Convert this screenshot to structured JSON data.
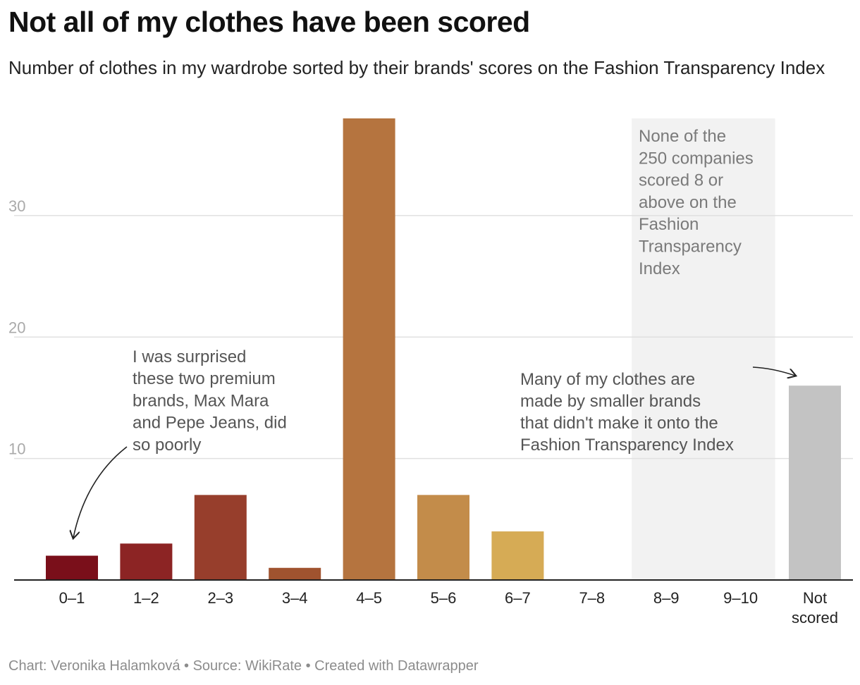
{
  "title": "Not all of my clothes have been scored",
  "subtitle": "Number of clothes in my wardrobe sorted by their brands' scores on the Fashion Transparency Index",
  "footer": "Chart: Veronika Halamková • Source: WikiRate • Created with Datawrapper",
  "chart_data": {
    "type": "bar",
    "title": "Not all of my clothes have been scored",
    "subtitle": "Number of clothes in my wardrobe sorted by their brands' scores on the Fashion Transparency Index",
    "categories": [
      "0–1",
      "1–2",
      "2–3",
      "3–4",
      "4–5",
      "5–6",
      "6–7",
      "7–8",
      "8–9",
      "9–10",
      "Not scored"
    ],
    "values": [
      2,
      3,
      7,
      1,
      38,
      7,
      4,
      0,
      0,
      0,
      16
    ],
    "bar_colors": [
      "#7a0f1a",
      "#8c2424",
      "#973e2c",
      "#a0532f",
      "#b5743f",
      "#c38c4a",
      "#d6ab55",
      "#d6ab55",
      "#d6ab55",
      "#d6ab55",
      "#c3c3c3"
    ],
    "ylim": [
      0,
      38
    ],
    "yticks": [
      10,
      20,
      30
    ],
    "grid": true,
    "xlabel": "",
    "ylabel": "",
    "highlight_range": [
      "8–9",
      "9–10"
    ],
    "annotations": [
      {
        "id": "premium",
        "lines": [
          "I was surprised",
          "these two premium",
          "brands, Max Mara",
          "and Pepe Jeans, did",
          "so poorly"
        ]
      },
      {
        "id": "smaller",
        "lines": [
          "Many of my clothes are",
          "made by smaller brands",
          "that didn't make it onto the",
          "Fashion Transparency Index"
        ]
      },
      {
        "id": "none",
        "lines": [
          "None of the",
          "250 companies",
          "scored 8 or",
          "above on the",
          "Fashion",
          "Transparency",
          "Index"
        ]
      }
    ]
  }
}
